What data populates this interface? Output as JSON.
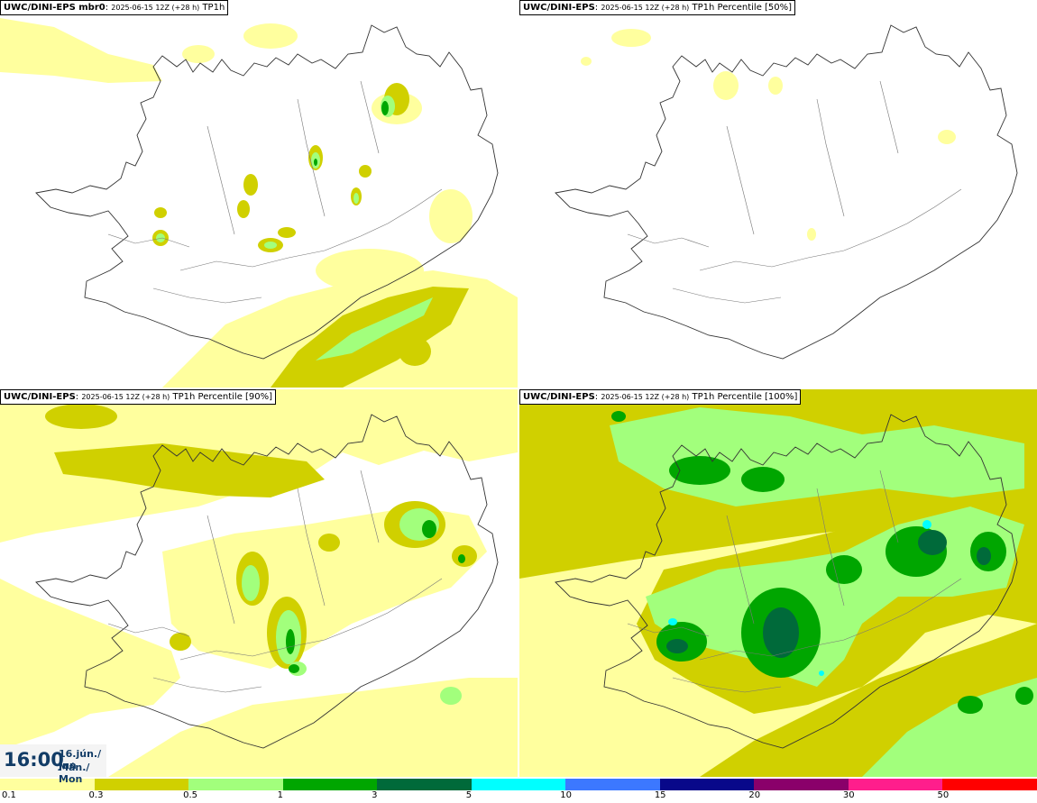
{
  "panels": [
    {
      "id": "tl",
      "model": "UWC/DINI-EPS mbr0",
      "run": "2025-06-15 12Z (+28 h)",
      "field": "TP1h"
    },
    {
      "id": "tr",
      "model": "UWC/DINI-EPS",
      "run": "2025-06-15 12Z (+28 h)",
      "field": "TP1h Percentile [50%]"
    },
    {
      "id": "bl",
      "model": "UWC/DINI-EPS",
      "run": "2025-06-15 12Z (+28 h)",
      "field": "TP1h Percentile [90%]"
    },
    {
      "id": "br",
      "model": "UWC/DINI-EPS",
      "run": "2025-06-15 12Z (+28 h)",
      "field": "TP1h Percentile [100%]"
    }
  ],
  "valid_time": {
    "time": "16:00",
    "date_line1": "16.jún./ Jun",
    "date_line2": "Mán./ Mon"
  },
  "legend": {
    "labels": [
      "0.1",
      "0.3",
      "0.5",
      "1",
      "3",
      "5",
      "10",
      "15",
      "20",
      "30",
      "50"
    ],
    "colors": [
      "#ffff9e",
      "#d0d000",
      "#a2ff7c",
      "#00a600",
      "#006a3a",
      "#00ffff",
      "#3c78ff",
      "#08088a",
      "#8a006a",
      "#ff1e8c",
      "#ff0000"
    ]
  }
}
